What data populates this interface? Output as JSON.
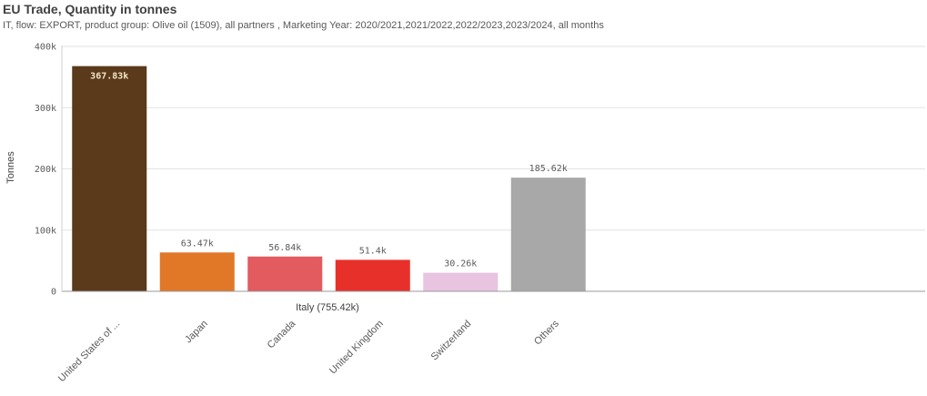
{
  "header": {
    "title": "EU Trade, Quantity in tonnes",
    "subtitle": "IT, flow: EXPORT, product group: Olive oil (1509), all partners , Marketing Year: 2020/2021,2021/2022,2022/2023,2023/2024, all months"
  },
  "chart_data": {
    "type": "bar",
    "title": "EU Trade, Quantity in tonnes",
    "ylabel": "Tonnes",
    "xlabel": "Italy (755.42k)",
    "ylim": [
      0,
      400000
    ],
    "yticks": [
      0,
      100000,
      200000,
      300000,
      400000
    ],
    "ytick_labels": [
      "0",
      "100k",
      "200k",
      "300k",
      "400k"
    ],
    "grid": true,
    "categories": [
      "United States of ...",
      "Japan",
      "Canada",
      "United Kingdom",
      "Switzerland",
      "Others"
    ],
    "values": [
      367830,
      63470,
      56840,
      51400,
      30260,
      185620
    ],
    "value_labels": [
      "367.83k",
      "63.47k",
      "56.84k",
      "51.4k",
      "30.26k",
      "185.62k"
    ],
    "colors": [
      "#5a3a1a",
      "#e07828",
      "#e35a5f",
      "#e8302a",
      "#e8c4e0",
      "#a8a8a8"
    ]
  }
}
